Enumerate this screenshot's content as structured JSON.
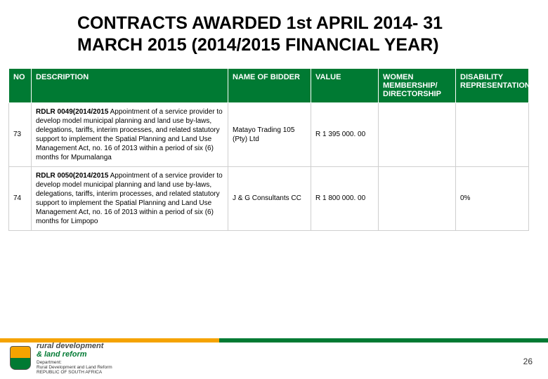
{
  "title_line1": "CONTRACTS AWARDED 1st APRIL 2014- 31",
  "title_line2": "MARCH 2015 (2014/2015 FINANCIAL YEAR)",
  "table": {
    "headers": {
      "no": "NO",
      "description": "DESCRIPTION",
      "bidder": "NAME OF BIDDER",
      "value": "VALUE",
      "women": "WOMEN MEMBERSHIP/ DIRECTORSHIP",
      "disability": "DISABILITY REPRESENTATION"
    },
    "rows": [
      {
        "no": "73",
        "ref": "RDLR 0049(2014/2015",
        "desc": "Appointment of a service provider to develop model municipal planning and land use by-laws, delegations, tariffs, interim processes, and related statutory support to implement the Spatial Planning and Land Use Management Act, no. 16 of 2013 within a period of six (6) months for Mpumalanga",
        "bidder": "Matayo Trading 105 (Pty) Ltd",
        "value": "R 1 395 000. 00",
        "women": "",
        "disability": ""
      },
      {
        "no": "74",
        "ref": "RDLR 0050(2014/2015",
        "desc": "Appointment of a service provider to develop model municipal planning and land use by-laws, delegations, tariffs, interim processes, and related statutory support to implement the Spatial Planning and Land Use Management Act, no. 16 of 2013 within a period of six (6) months for Limpopo",
        "bidder": "J & G Consultants CC",
        "value": "R 1 800 000. 00",
        "women": "",
        "disability": "0%"
      }
    ]
  },
  "footer": {
    "dept_line1": "rural development",
    "dept_line2": "& land reform",
    "dept_line3a": "Department:",
    "dept_line3b": "Rural Development and Land Reform",
    "dept_line3c": "REPUBLIC OF SOUTH AFRICA",
    "page_number": "26"
  },
  "colors": {
    "header_bg": "#007a33",
    "header_text": "#ffffff",
    "stripe_orange": "#f5a300",
    "stripe_green": "#007a33",
    "cell_border": "#cfcfcf"
  }
}
